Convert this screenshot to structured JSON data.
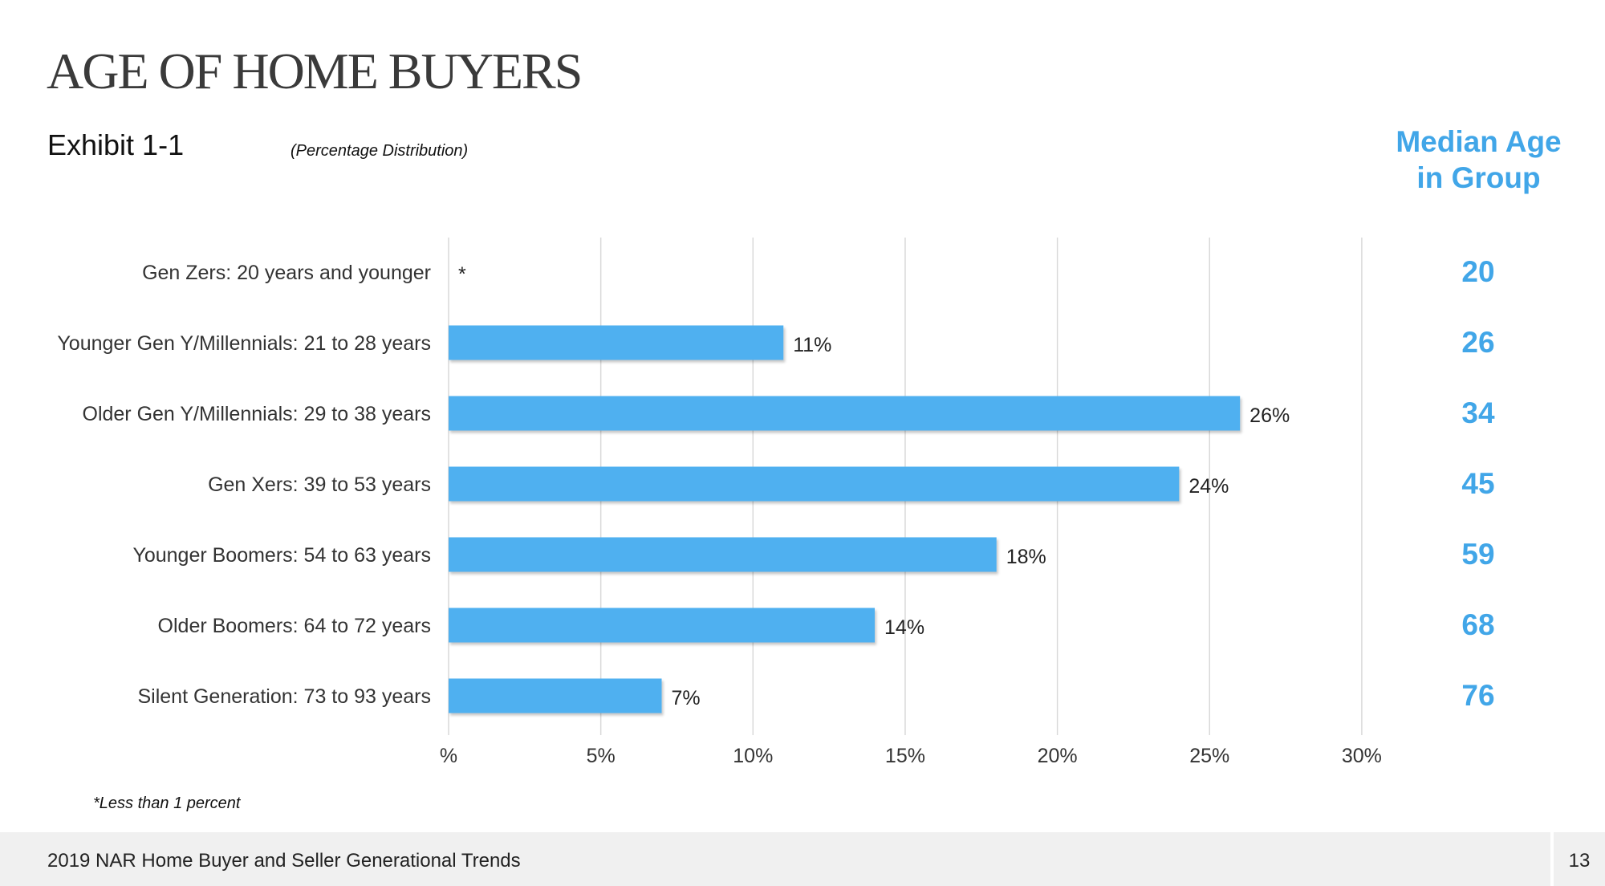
{
  "page": {
    "title": "AGE OF HOME BUYERS",
    "exhibit": "Exhibit 1-1",
    "subtitle": "(Percentage Distribution)",
    "median_header_line1": "Median Age",
    "median_header_line2": "in Group",
    "footnote": "*Less than 1 percent",
    "footer": "2019 NAR Home Buyer and Seller Generational Trends",
    "page_number": "13"
  },
  "colors": {
    "bar": "#4fb0f0",
    "accent": "#41a6e8",
    "grid": "#d9d9d9",
    "text": "#333333"
  },
  "chart_data": {
    "type": "bar",
    "orientation": "horizontal",
    "categories": [
      "Gen Zers: 20 years and younger",
      "Younger Gen Y/Millennials: 21 to 28 years",
      "Older Gen Y/Millennials: 29 to 38 years",
      "Gen Xers: 39 to 53 years",
      "Younger Boomers: 54 to 63 years",
      "Older Boomers: 64 to 72 years",
      "Silent Generation: 73 to 93 years"
    ],
    "values": [
      0,
      11,
      26,
      24,
      18,
      14,
      7
    ],
    "data_labels": [
      "*",
      "11%",
      "26%",
      "24%",
      "18%",
      "14%",
      "7%"
    ],
    "median_age": [
      "20",
      "26",
      "34",
      "45",
      "59",
      "68",
      "76"
    ],
    "xticks": [
      0,
      5,
      10,
      15,
      20,
      25,
      30
    ],
    "xtick_labels": [
      "%",
      "5%",
      "10%",
      "15%",
      "20%",
      "25%",
      "30%"
    ],
    "xlim": [
      0,
      30
    ],
    "grid": true,
    "legend": "none"
  }
}
